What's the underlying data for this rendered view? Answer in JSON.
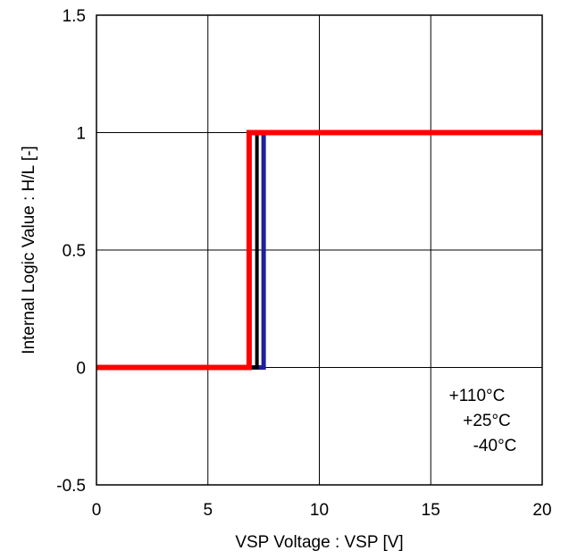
{
  "chart_data": {
    "type": "line",
    "title": "",
    "xlabel": "VSP Voltage : VSP [V]",
    "ylabel": "Internal Logic Value : H/L [-]",
    "xlim": [
      0,
      20
    ],
    "ylim": [
      -0.5,
      1.5
    ],
    "xticks": [
      0,
      5,
      10,
      15,
      20
    ],
    "yticks": [
      -0.5,
      0,
      0.5,
      1,
      1.5
    ],
    "xtick_labels": [
      "0",
      "5",
      "10",
      "15",
      "20"
    ],
    "ytick_labels": [
      "-0.5",
      "0",
      "0.5",
      "1",
      "1.5"
    ],
    "grid": true,
    "legend_position": "bottom-right",
    "series": [
      {
        "name": "-40°C",
        "color": "#1f1f9e",
        "x": [
          0,
          7.5,
          7.5,
          20
        ],
        "y": [
          0,
          0,
          1,
          1
        ]
      },
      {
        "name": "+25°C",
        "color": "#000000",
        "x": [
          0,
          7.2,
          7.2,
          20
        ],
        "y": [
          0,
          0,
          1,
          1
        ]
      },
      {
        "name": "+110°C",
        "color": "#ff0000",
        "x": [
          0,
          6.85,
          6.85,
          20
        ],
        "y": [
          0,
          0,
          1,
          1
        ]
      }
    ],
    "legend_entries": [
      "+110°C",
      "+25°C",
      "-40°C"
    ]
  }
}
